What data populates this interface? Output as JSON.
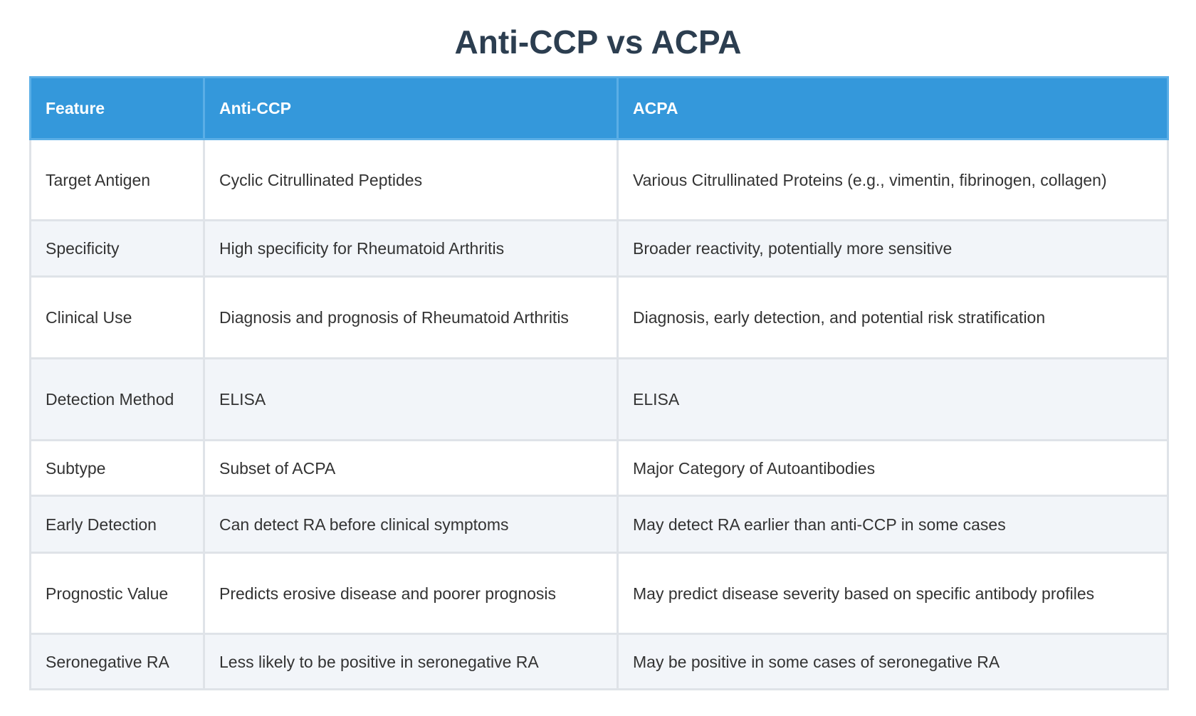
{
  "title": "Anti-CCP vs ACPA",
  "headers": [
    "Feature",
    "Anti-CCP",
    "ACPA"
  ],
  "rows": [
    [
      "Target Antigen",
      "Cyclic Citrullinated Peptides",
      "Various Citrullinated Proteins (e.g., vimentin, fibrinogen, collagen)"
    ],
    [
      "Specificity",
      "High specificity for Rheumatoid Arthritis",
      "Broader reactivity, potentially more sensitive"
    ],
    [
      "Clinical Use",
      "Diagnosis and prognosis of Rheumatoid Arthritis",
      "Diagnosis, early detection, and potential risk stratification"
    ],
    [
      "Detection Method",
      "ELISA",
      "ELISA"
    ],
    [
      "Subtype",
      "Subset of ACPA",
      "Major Category of Autoantibodies"
    ],
    [
      "Early Detection",
      "Can detect RA before clinical symptoms",
      "May detect RA earlier than anti-CCP in some cases"
    ],
    [
      "Prognostic Value",
      "Predicts erosive disease and poorer prognosis",
      "May predict disease severity based on specific antibody profiles"
    ],
    [
      "Seronegative RA",
      "Less likely to be positive in seronegative RA",
      "May be positive in some cases of seronegative RA"
    ]
  ],
  "colors": {
    "header_bg": "#3498db",
    "title": "#2c3e50",
    "stripe": "#f2f5f9"
  }
}
